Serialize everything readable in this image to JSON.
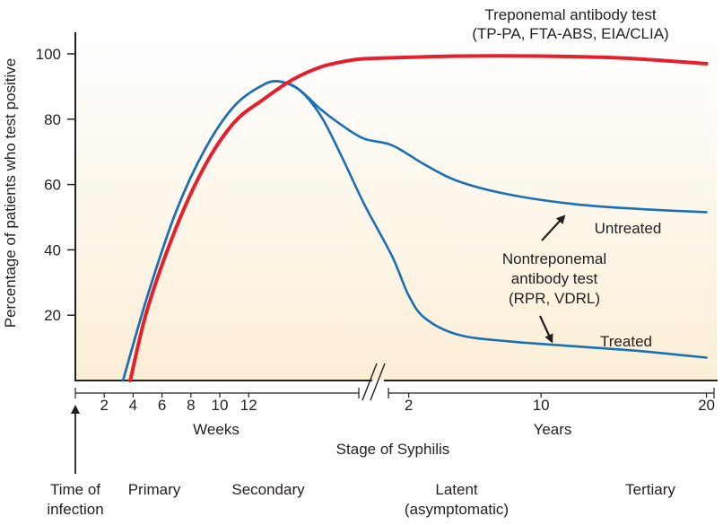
{
  "chart_data": {
    "type": "line",
    "title": "",
    "ylabel": "Percentage of patients who test positive",
    "ylim": [
      0,
      100
    ],
    "yticks": [
      20,
      40,
      60,
      80,
      100
    ],
    "x_weeks_label": "Weeks",
    "x_weeks_ticks": [
      2,
      4,
      6,
      8,
      10,
      12
    ],
    "x_weeks_range": [
      0,
      20
    ],
    "x_years_label": "Years",
    "x_years_ticks": [
      2,
      10,
      20
    ],
    "x_years_range": [
      0.5,
      21
    ],
    "xlabel": "Stage of Syphilis",
    "arrow_label_line1": "Time of",
    "arrow_label_line2": "infection",
    "stages": [
      {
        "name": "Primary",
        "line2": ""
      },
      {
        "name": "Secondary",
        "line2": ""
      },
      {
        "name": "Latent",
        "line2": "(asymptomatic)"
      },
      {
        "name": "Tertiary",
        "line2": ""
      }
    ],
    "series": [
      {
        "name": "Treponemal antibody test",
        "label_line1": "Treponemal antibody test",
        "label_line2": "(TP-PA, FTA-ABS, EIA/CLIA)",
        "color": "#e3202b",
        "weeks": [
          [
            3.8,
            0
          ],
          [
            5,
            22
          ],
          [
            7,
            47
          ],
          [
            9,
            66
          ],
          [
            11,
            79
          ],
          [
            13,
            86
          ],
          [
            15,
            92
          ],
          [
            17,
            96
          ],
          [
            19,
            98
          ],
          [
            20,
            98.5
          ]
        ],
        "years": [
          [
            1,
            98.8
          ],
          [
            5,
            99.3
          ],
          [
            10,
            99.3
          ],
          [
            15,
            98.7
          ],
          [
            20,
            97
          ]
        ]
      },
      {
        "name": "Nontreponemal antibody test - Untreated",
        "label": "Untreated",
        "color": "#1b6fb5",
        "weeks": [
          [
            3.3,
            0
          ],
          [
            5,
            26
          ],
          [
            7,
            52
          ],
          [
            9,
            71
          ],
          [
            11,
            84
          ],
          [
            13,
            90.5
          ],
          [
            14.2,
            91.5
          ],
          [
            15.5,
            89
          ],
          [
            17,
            83
          ],
          [
            18.5,
            78
          ],
          [
            20,
            74
          ]
        ],
        "years": [
          [
            1,
            72
          ],
          [
            3,
            66
          ],
          [
            5,
            61
          ],
          [
            8,
            57
          ],
          [
            12,
            54
          ],
          [
            16,
            52.5
          ],
          [
            20,
            51.5
          ]
        ]
      },
      {
        "name": "Nontreponemal antibody test - Treated",
        "label": "Treated",
        "color": "#1b6fb5",
        "weeks": [
          [
            3.3,
            0
          ],
          [
            5,
            26
          ],
          [
            7,
            52
          ],
          [
            9,
            71
          ],
          [
            11,
            84
          ],
          [
            13,
            90.5
          ],
          [
            14.2,
            91.5
          ],
          [
            15.5,
            89
          ],
          [
            17,
            81
          ],
          [
            18.5,
            68
          ],
          [
            20,
            54
          ]
        ],
        "years": [
          [
            1,
            38
          ],
          [
            2,
            26
          ],
          [
            3,
            19
          ],
          [
            5,
            14
          ],
          [
            8,
            12
          ],
          [
            12,
            10.5
          ],
          [
            16,
            9
          ],
          [
            20,
            7
          ]
        ]
      }
    ],
    "annotation": {
      "line1": "Nontreponemal",
      "line2": "antibody test",
      "line3": "(RPR, VDRL)"
    }
  }
}
